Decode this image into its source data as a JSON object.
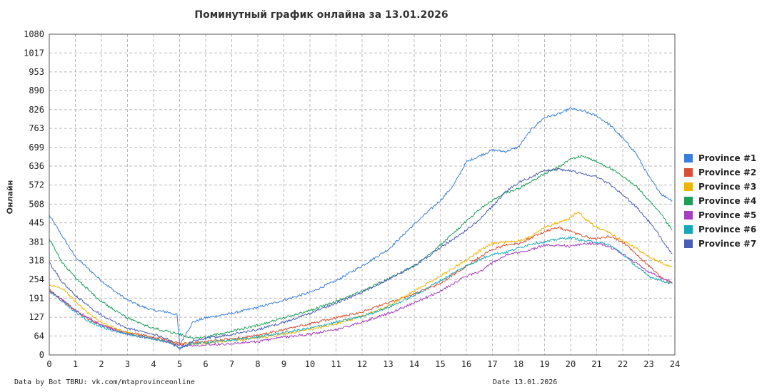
{
  "title": "Поминутный график онлайна за 13.01.2026",
  "ylabel": "Онлайн",
  "credit": "Data by Bot TBRU: vk.com/mtaprovinceonline",
  "date_label": "Date 13.01.2026",
  "chart_data": {
    "type": "line",
    "title": "Поминутный график онлайна за 13.01.2026",
    "xlabel": "",
    "ylabel": "Онлайн",
    "xlim": [
      0,
      24
    ],
    "ylim": [
      0,
      1080
    ],
    "x_ticks": [
      "0",
      "1",
      "2",
      "3",
      "4",
      "5",
      "6",
      "7",
      "8",
      "9",
      "10",
      "11",
      "12",
      "13",
      "14",
      "15",
      "16",
      "17",
      "18",
      "19",
      "20",
      "21",
      "22",
      "23",
      "24"
    ],
    "y_ticks": [
      "0",
      "64",
      "127",
      "191",
      "254",
      "318",
      "381",
      "445",
      "508",
      "572",
      "636",
      "699",
      "763",
      "826",
      "890",
      "953",
      "1017",
      "1080"
    ],
    "grid": true,
    "legend_position": "right",
    "series": [
      {
        "name": "Province #1",
        "color": "#3b7ddd",
        "x": [
          0,
          0.5,
          1,
          1.5,
          2,
          2.5,
          3,
          3.5,
          4,
          4.5,
          4.9,
          5.0,
          5.5,
          6,
          7,
          8,
          9,
          10,
          11,
          12,
          13,
          14,
          15,
          15.5,
          16,
          16.5,
          17,
          17.5,
          18,
          18.5,
          19,
          19.5,
          20,
          20.5,
          21,
          21.5,
          22,
          22.5,
          23,
          23.5,
          23.9
        ],
        "y": [
          470,
          400,
          330,
          290,
          250,
          215,
          185,
          165,
          150,
          145,
          135,
          35,
          110,
          125,
          140,
          160,
          185,
          210,
          250,
          300,
          355,
          440,
          520,
          570,
          650,
          670,
          690,
          685,
          700,
          760,
          800,
          810,
          830,
          820,
          805,
          775,
          730,
          680,
          600,
          540,
          520
        ]
      },
      {
        "name": "Province #2",
        "color": "#d94f35",
        "x": [
          0,
          0.5,
          1,
          1.5,
          2,
          2.5,
          3,
          3.5,
          4,
          4.5,
          5,
          5.5,
          6,
          7,
          8,
          9,
          10,
          11,
          12,
          13,
          14,
          15,
          16,
          16.5,
          17,
          17.5,
          18,
          18.5,
          19,
          19.5,
          20,
          20.5,
          21,
          21.5,
          22,
          22.5,
          23,
          23.5,
          23.9
        ],
        "y": [
          220,
          185,
          150,
          120,
          100,
          85,
          75,
          68,
          60,
          50,
          38,
          40,
          45,
          55,
          65,
          85,
          105,
          125,
          145,
          175,
          205,
          240,
          300,
          330,
          355,
          370,
          375,
          395,
          415,
          430,
          415,
          400,
          390,
          400,
          380,
          340,
          300,
          260,
          240
        ]
      },
      {
        "name": "Province #3",
        "color": "#f0b400",
        "x": [
          0,
          0.5,
          1,
          1.5,
          2,
          2.5,
          3,
          3.5,
          4,
          4.5,
          5,
          5.5,
          6,
          7,
          8,
          9,
          10,
          11,
          12,
          13,
          14,
          15,
          16,
          16.5,
          17,
          17.5,
          18,
          18.5,
          19,
          19.5,
          20,
          20.3,
          20.5,
          21,
          21.5,
          22,
          22.5,
          23,
          23.5,
          23.9
        ],
        "y": [
          235,
          225,
          180,
          140,
          110,
          90,
          75,
          65,
          57,
          45,
          35,
          38,
          40,
          48,
          58,
          70,
          85,
          105,
          130,
          165,
          215,
          265,
          320,
          350,
          375,
          380,
          385,
          400,
          430,
          445,
          460,
          485,
          460,
          430,
          410,
          385,
          360,
          330,
          310,
          295
        ]
      },
      {
        "name": "Province #4",
        "color": "#1e9e5a",
        "x": [
          0,
          0.5,
          1,
          1.5,
          2,
          2.5,
          3,
          3.5,
          4,
          4.5,
          5,
          5.5,
          6,
          7,
          8,
          9,
          10,
          11,
          12,
          13,
          14,
          15,
          16,
          16.5,
          17,
          17.5,
          18,
          18.5,
          19,
          19.5,
          20,
          20.5,
          21,
          21.5,
          22,
          22.5,
          23,
          23.5,
          23.9
        ],
        "y": [
          390,
          310,
          260,
          220,
          180,
          150,
          125,
          105,
          90,
          80,
          70,
          55,
          60,
          80,
          100,
          125,
          150,
          180,
          215,
          255,
          300,
          370,
          450,
          490,
          520,
          545,
          560,
          585,
          610,
          630,
          660,
          670,
          650,
          630,
          600,
          570,
          520,
          470,
          420
        ]
      },
      {
        "name": "Province #5",
        "color": "#a43fc0",
        "x": [
          0,
          0.5,
          1,
          1.5,
          2,
          2.5,
          3,
          3.5,
          4,
          4.5,
          5,
          5.5,
          6,
          7,
          8,
          9,
          10,
          11,
          12,
          13,
          14,
          15,
          16,
          16.5,
          17,
          17.5,
          18,
          18.5,
          19,
          19.5,
          20,
          20.5,
          21,
          21.5,
          22,
          22.5,
          23,
          23.5,
          23.9
        ],
        "y": [
          215,
          185,
          150,
          125,
          100,
          85,
          70,
          62,
          55,
          45,
          33,
          32,
          35,
          38,
          45,
          60,
          70,
          85,
          110,
          140,
          175,
          215,
          265,
          280,
          310,
          335,
          345,
          355,
          370,
          370,
          365,
          375,
          375,
          365,
          340,
          310,
          280,
          260,
          245
        ]
      },
      {
        "name": "Province #6",
        "color": "#17a7bb",
        "x": [
          0,
          0.5,
          1,
          1.5,
          2,
          2.5,
          3,
          3.5,
          4,
          4.5,
          5,
          5.5,
          6,
          7,
          8,
          9,
          10,
          11,
          12,
          13,
          14,
          15,
          16,
          16.5,
          17,
          17.5,
          18,
          18.5,
          19,
          19.5,
          20,
          20.5,
          21,
          21.5,
          22,
          22.5,
          23,
          23.5,
          23.9
        ],
        "y": [
          215,
          180,
          145,
          115,
          95,
          80,
          70,
          62,
          55,
          42,
          25,
          38,
          42,
          50,
          60,
          75,
          90,
          110,
          130,
          160,
          200,
          250,
          300,
          320,
          340,
          345,
          360,
          375,
          380,
          390,
          395,
          385,
          380,
          370,
          340,
          300,
          265,
          250,
          240
        ]
      },
      {
        "name": "Province #7",
        "color": "#4a5db7",
        "x": [
          0,
          0.5,
          1,
          1.5,
          2,
          2.5,
          3,
          3.5,
          4,
          4.5,
          5,
          5.5,
          6,
          7,
          8,
          9,
          10,
          11,
          12,
          13,
          14,
          15,
          16,
          16.5,
          17,
          17.5,
          18,
          18.5,
          19,
          19.5,
          20,
          20.5,
          21,
          21.5,
          22,
          22.5,
          23,
          23.5,
          23.9
        ],
        "y": [
          310,
          245,
          200,
          165,
          135,
          110,
          90,
          80,
          70,
          55,
          22,
          45,
          55,
          70,
          85,
          110,
          140,
          175,
          210,
          255,
          300,
          360,
          420,
          455,
          500,
          550,
          580,
          600,
          620,
          625,
          620,
          610,
          600,
          575,
          540,
          500,
          450,
          390,
          340
        ]
      }
    ]
  }
}
